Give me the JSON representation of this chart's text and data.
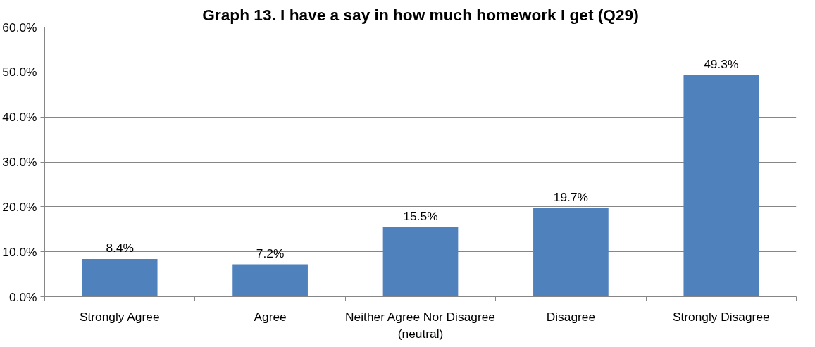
{
  "chart_data": {
    "type": "bar",
    "title": "Graph 13. I have a say in how much homework I get (Q29)",
    "categories": [
      "Strongly Agree",
      "Agree",
      "Neither Agree Nor Disagree (neutral)",
      "Disagree",
      "Strongly Disagree"
    ],
    "values": [
      8.4,
      7.2,
      15.5,
      19.7,
      49.3
    ],
    "value_labels": [
      "8.4%",
      "7.2%",
      "15.5%",
      "19.7%",
      "49.3%"
    ],
    "color": "#4f81bd",
    "ylim": [
      0,
      60
    ],
    "yticks": [
      {
        "value": 0,
        "label": "0.0%"
      },
      {
        "value": 10,
        "label": "10.0%"
      },
      {
        "value": 20,
        "label": "20.0%"
      },
      {
        "value": 30,
        "label": "30.0%"
      },
      {
        "value": 40,
        "label": "40.0%"
      },
      {
        "value": 50,
        "label": "50.0%"
      },
      {
        "value": 60,
        "label": "60.0%"
      }
    ],
    "grid": "y"
  }
}
